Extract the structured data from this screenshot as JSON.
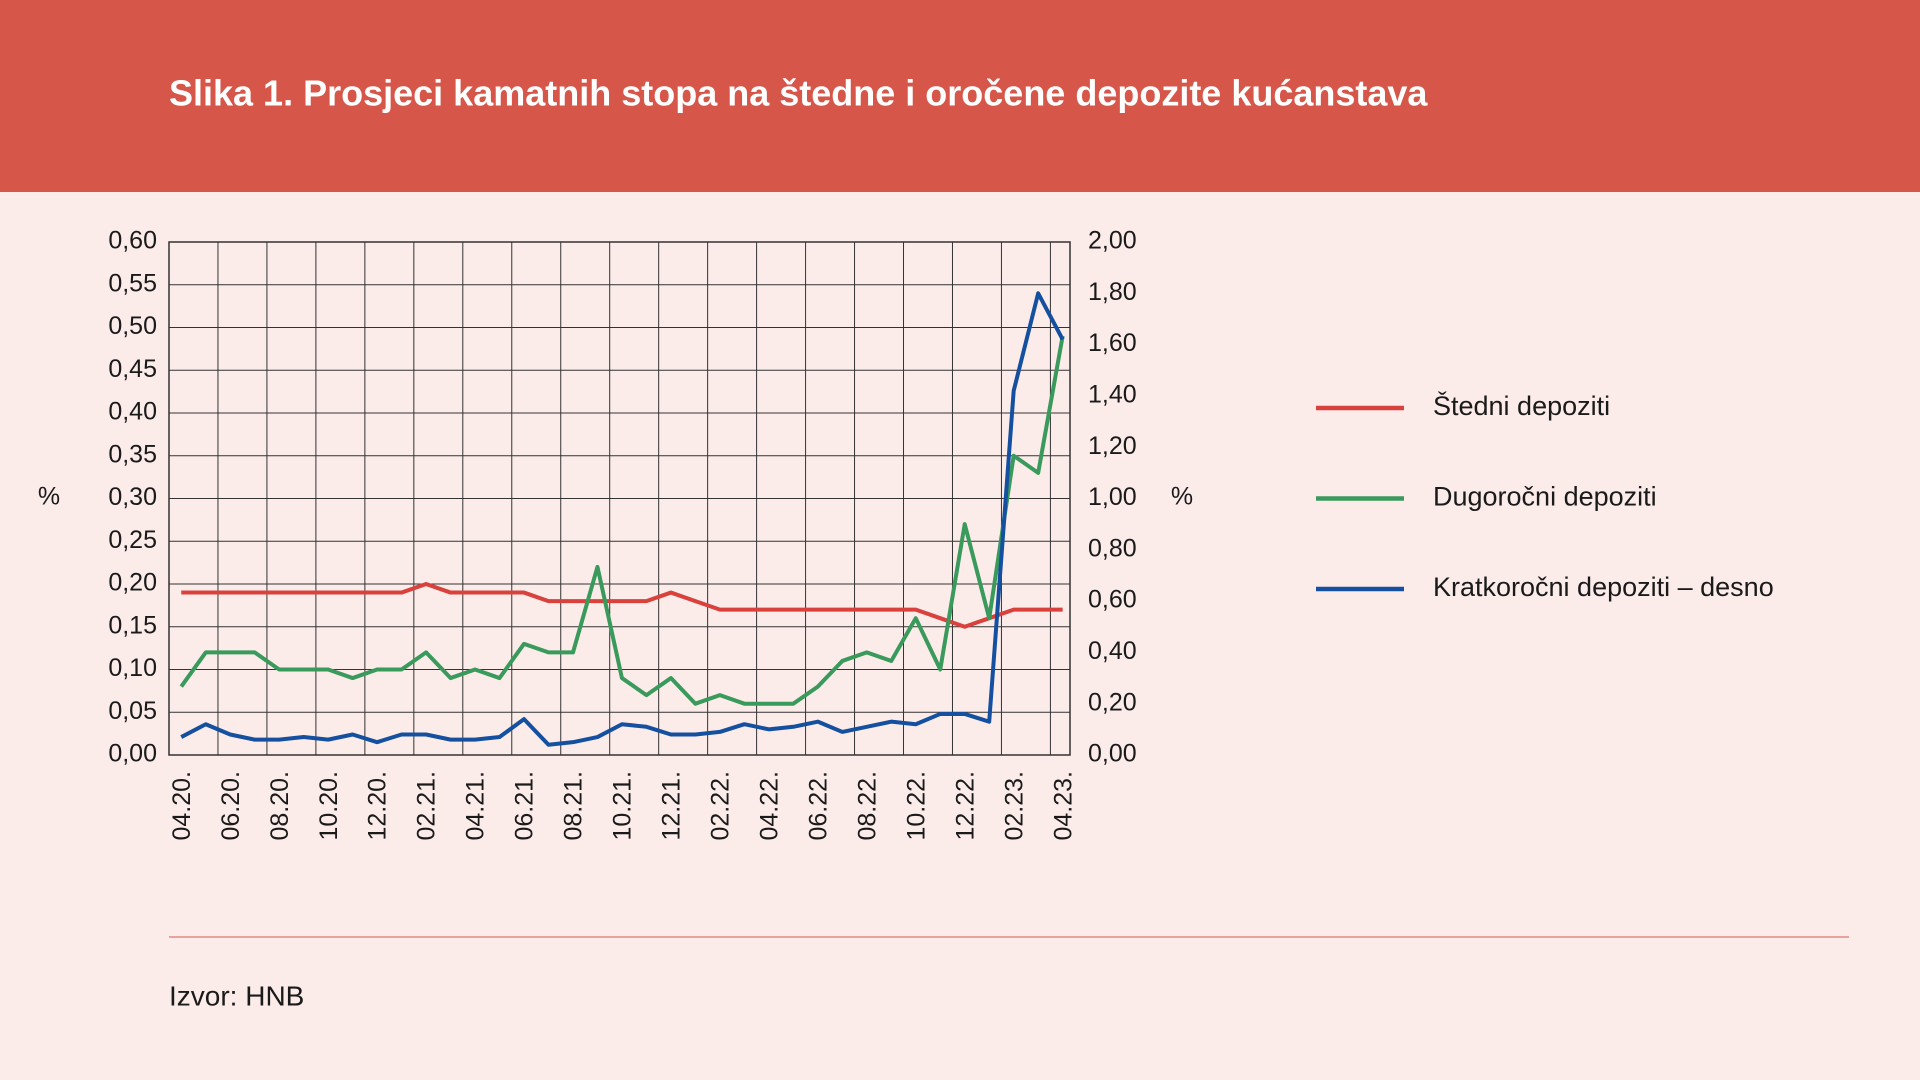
{
  "chart_data": {
    "type": "line",
    "title": "Slika 1. Prosjeci kamatnih stopa na štedne i oročene depozite kućanstava",
    "ylabel": "%",
    "y2label": "%",
    "source": "Izvor: HNB",
    "categories": [
      "04.20.",
      null,
      "06.20.",
      null,
      "08.20.",
      null,
      "10.20.",
      null,
      "12.20.",
      null,
      "02.21.",
      null,
      "04.21.",
      null,
      "06.21.",
      null,
      "08.21.",
      null,
      "10.21.",
      null,
      "12.21.",
      null,
      "02.22.",
      null,
      "04.22.",
      null,
      "06.22.",
      null,
      "08.22.",
      null,
      "10.22.",
      null,
      "12.22.",
      null,
      "02.23.",
      null,
      "04.23."
    ],
    "series": [
      {
        "name": "Štedni depoziti",
        "color": "#d8413c",
        "values": [
          0.19,
          0.19,
          0.19,
          0.19,
          0.19,
          0.19,
          0.19,
          0.19,
          0.19,
          0.19,
          0.2,
          0.19,
          0.19,
          0.19,
          0.19,
          0.18,
          0.18,
          0.18,
          0.18,
          0.18,
          0.19,
          0.18,
          0.17,
          0.17,
          0.17,
          0.17,
          0.17,
          0.17,
          0.17,
          0.17,
          0.17,
          0.16,
          0.15,
          0.16,
          0.17,
          0.17,
          0.17
        ]
      },
      {
        "name": "Dugoročni depoziti",
        "color": "#3a9a5c",
        "values": [
          0.08,
          0.12,
          0.12,
          0.12,
          0.1,
          0.1,
          0.1,
          0.09,
          0.1,
          0.1,
          0.12,
          0.09,
          0.1,
          0.09,
          0.13,
          0.12,
          0.12,
          0.22,
          0.09,
          0.07,
          0.09,
          0.06,
          0.07,
          0.06,
          0.06,
          0.06,
          0.08,
          0.11,
          0.12,
          0.11,
          0.16,
          0.1,
          0.27,
          0.16,
          0.35,
          0.33,
          0.49
        ]
      },
      {
        "name": "Kratkoročni depoziti – desno",
        "color": "#1550a0",
        "axis": "y2",
        "values": [
          0.07,
          0.12,
          0.08,
          0.06,
          0.06,
          0.07,
          0.06,
          0.08,
          0.05,
          0.08,
          0.08,
          0.06,
          0.06,
          0.07,
          0.14,
          0.04,
          0.05,
          0.07,
          0.12,
          0.11,
          0.08,
          0.08,
          0.09,
          0.12,
          0.1,
          0.11,
          0.13,
          0.09,
          0.11,
          0.13,
          0.12,
          0.16,
          0.16,
          0.13,
          1.42,
          1.8,
          1.62
        ]
      }
    ],
    "ylim": [
      0,
      0.6
    ],
    "yticks": [
      {
        "value": 0,
        "label": "0,00"
      },
      {
        "value": 0.05,
        "label": "0,05"
      },
      {
        "value": 0.1,
        "label": "0,10"
      },
      {
        "value": 0.15,
        "label": "0,15"
      },
      {
        "value": 0.2,
        "label": "0,20"
      },
      {
        "value": 0.25,
        "label": "0,25"
      },
      {
        "value": 0.3,
        "label": "0,30"
      },
      {
        "value": 0.35,
        "label": "0,35"
      },
      {
        "value": 0.4,
        "label": "0,40"
      },
      {
        "value": 0.45,
        "label": "0,45"
      },
      {
        "value": 0.5,
        "label": "0,50"
      },
      {
        "value": 0.55,
        "label": "0,55"
      },
      {
        "value": 0.6,
        "label": "0,60"
      }
    ],
    "y2lim": [
      0,
      2
    ],
    "y2ticks": [
      {
        "value": 0,
        "label": "0,00"
      },
      {
        "value": 0.2,
        "label": "0,20"
      },
      {
        "value": 0.4,
        "label": "0,40"
      },
      {
        "value": 0.6,
        "label": "0,60"
      },
      {
        "value": 0.8,
        "label": "0,80"
      },
      {
        "value": 1,
        "label": "1,00"
      },
      {
        "value": 1.2,
        "label": "1,20"
      },
      {
        "value": 1.4,
        "label": "1,40"
      },
      {
        "value": 1.6,
        "label": "1,60"
      },
      {
        "value": 1.8,
        "label": "1,80"
      },
      {
        "value": 2,
        "label": "2,00"
      }
    ],
    "grid": true,
    "legend": "right"
  }
}
